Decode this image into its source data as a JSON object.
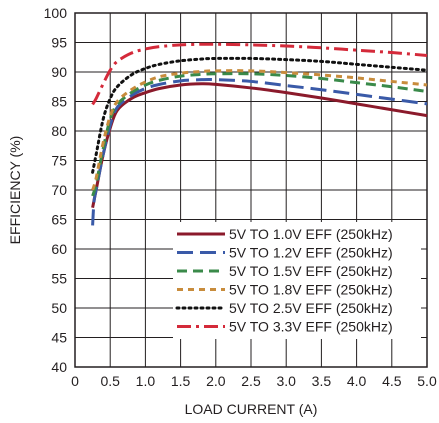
{
  "chart_data": {
    "type": "line",
    "title": "",
    "xlabel": "LOAD CURRENT (A)",
    "ylabel": "EFFICIENCY (%)",
    "xlim": [
      0,
      5
    ],
    "ylim": [
      40,
      100
    ],
    "xticks": [
      0,
      0.5,
      1.0,
      1.5,
      2.0,
      2.5,
      3.0,
      3.5,
      4.0,
      4.5,
      5.0
    ],
    "xtick_labels": [
      "0",
      "0.5",
      "1.0",
      "1.5",
      "2.0",
      "2.5",
      "3.0",
      "3.5",
      "4.0",
      "4.5",
      "5.0"
    ],
    "yticks": [
      40,
      45,
      50,
      55,
      60,
      65,
      70,
      75,
      80,
      85,
      90,
      95,
      100
    ],
    "ytick_labels": [
      "40",
      "45",
      "50",
      "55",
      "60",
      "65",
      "70",
      "75",
      "80",
      "85",
      "90",
      "95",
      "100"
    ],
    "grid": true,
    "legend_position": "bottom-right",
    "series": [
      {
        "name": "5V TO 1.0V EFF (250kHz)",
        "color": "#8b1a2b",
        "dash": "solid",
        "x": [
          0.25,
          0.3,
          0.4,
          0.5,
          0.6,
          0.8,
          1.0,
          1.2,
          1.5,
          1.8,
          2.0,
          2.5,
          3.0,
          3.5,
          4.0,
          4.5,
          5.0
        ],
        "y": [
          67,
          70,
          76,
          80.5,
          83.5,
          85.5,
          86.5,
          87.2,
          87.8,
          88.0,
          87.9,
          87.3,
          86.5,
          85.6,
          84.6,
          83.6,
          82.6
        ]
      },
      {
        "name": "5V TO 1.2V EFF (250kHz)",
        "color": "#3a5aa8",
        "dash": "long-dash",
        "x": [
          0.25,
          0.27,
          0.3,
          0.4,
          0.5,
          0.6,
          0.8,
          1.0,
          1.2,
          1.5,
          1.8,
          2.0,
          2.5,
          3.0,
          3.5,
          4.0,
          4.5,
          5.0
        ],
        "y": [
          64,
          68,
          70,
          76,
          81,
          84,
          86,
          87.2,
          87.9,
          88.5,
          88.7,
          88.7,
          88.4,
          87.7,
          87.0,
          86.2,
          85.4,
          84.6
        ]
      },
      {
        "name": "5V TO 1.5V EFF (250kHz)",
        "color": "#3a8a4a",
        "dash": "dash",
        "x": [
          0.25,
          0.3,
          0.4,
          0.5,
          0.6,
          0.8,
          1.0,
          1.2,
          1.5,
          1.8,
          2.0,
          2.5,
          3.0,
          3.5,
          4.0,
          4.5,
          5.0
        ],
        "y": [
          69,
          71,
          77,
          82,
          84.5,
          86.5,
          87.8,
          88.6,
          89.3,
          89.6,
          89.7,
          89.7,
          89.4,
          88.9,
          88.2,
          87.5,
          86.7
        ]
      },
      {
        "name": "5V TO 1.8V EFF (250kHz)",
        "color": "#c88c3c",
        "dash": "short-dash",
        "x": [
          0.25,
          0.3,
          0.4,
          0.5,
          0.6,
          0.8,
          1.0,
          1.2,
          1.5,
          1.8,
          2.0,
          2.5,
          3.0,
          3.5,
          4.0,
          4.5,
          5.0
        ],
        "y": [
          70,
          72,
          78,
          82.5,
          85,
          87,
          88.3,
          89.2,
          89.8,
          90.1,
          90.2,
          90.2,
          89.9,
          89.5,
          89.0,
          88.4,
          87.8
        ]
      },
      {
        "name": "5V TO 2.5V EFF (250kHz)",
        "color": "#111111",
        "dash": "dotted",
        "x": [
          0.25,
          0.3,
          0.4,
          0.5,
          0.6,
          0.8,
          1.0,
          1.2,
          1.5,
          1.8,
          2.0,
          2.5,
          3.0,
          3.5,
          4.0,
          4.5,
          5.0
        ],
        "y": [
          73,
          76,
          82,
          85.5,
          87.5,
          89.5,
          90.6,
          91.3,
          91.9,
          92.2,
          92.3,
          92.3,
          92.1,
          91.8,
          91.3,
          90.8,
          90.3
        ]
      },
      {
        "name": "5V TO 3.3V EFF (250kHz)",
        "color": "#d42a3a",
        "dash": "dash-dot",
        "x": [
          0.25,
          0.3,
          0.4,
          0.5,
          0.6,
          0.8,
          1.0,
          1.2,
          1.5,
          1.8,
          2.0,
          2.5,
          3.0,
          3.5,
          4.0,
          4.5,
          5.0
        ],
        "y": [
          84.5,
          85.5,
          88,
          90.3,
          91.8,
          93.2,
          93.9,
          94.3,
          94.6,
          94.7,
          94.7,
          94.6,
          94.4,
          94.1,
          93.7,
          93.3,
          92.8
        ]
      }
    ]
  }
}
